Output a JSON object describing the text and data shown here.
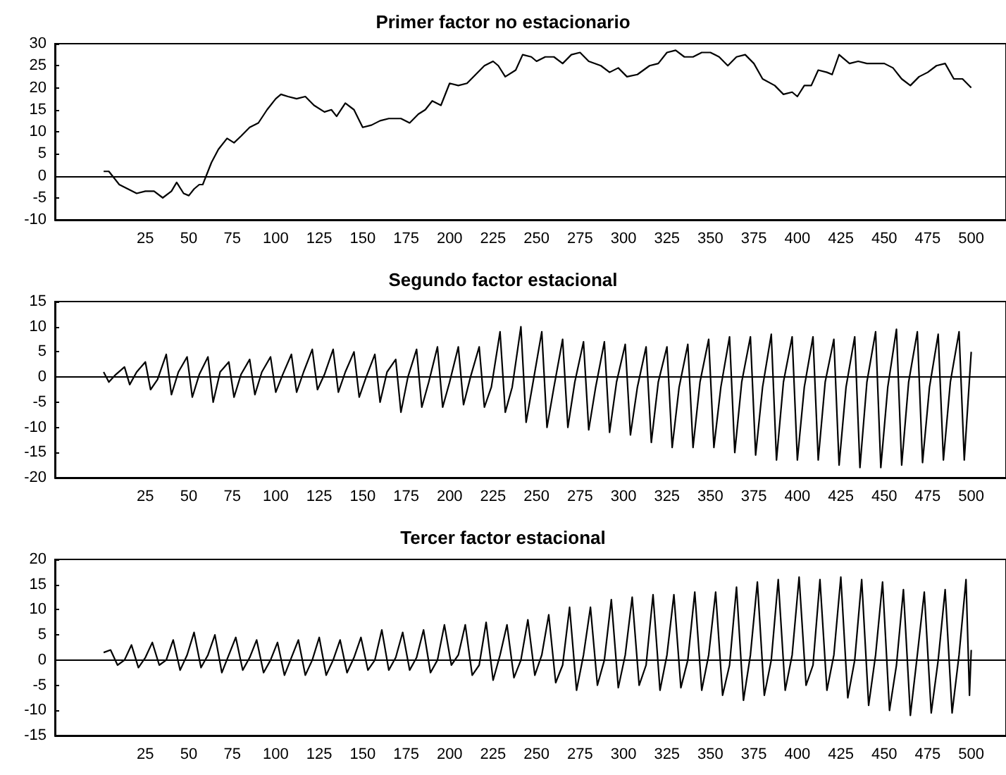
{
  "chart_data": [
    {
      "type": "line",
      "title": "Primer factor no estacionario",
      "color": "#000000",
      "marker": "none",
      "line_style": "solid",
      "x": [
        1,
        4,
        6,
        10,
        15,
        20,
        25,
        30,
        35,
        40,
        43,
        47,
        50,
        53,
        56,
        58,
        60,
        63,
        67,
        72,
        76,
        80,
        85,
        90,
        95,
        100,
        103,
        107,
        112,
        117,
        122,
        128,
        132,
        135,
        140,
        145,
        150,
        155,
        160,
        165,
        172,
        177,
        182,
        186,
        190,
        195,
        200,
        205,
        210,
        215,
        220,
        225,
        228,
        232,
        238,
        242,
        247,
        250,
        255,
        260,
        265,
        270,
        275,
        280,
        287,
        292,
        297,
        302,
        308,
        315,
        320,
        325,
        330,
        335,
        340,
        345,
        350,
        355,
        360,
        365,
        370,
        375,
        380,
        387,
        392,
        397,
        400,
        404,
        408,
        412,
        417,
        420,
        424,
        430,
        435,
        440,
        447,
        450,
        455,
        460,
        465,
        470,
        475,
        480,
        485,
        490,
        495,
        500
      ],
      "values": [
        1,
        1,
        0,
        -2,
        -3,
        -4,
        -3.5,
        -3.5,
        -5,
        -3.5,
        -1.5,
        -4,
        -4.5,
        -3,
        -2,
        -2,
        0,
        3,
        6,
        8.5,
        7.5,
        9,
        11,
        12,
        15,
        17.5,
        18.5,
        18,
        17.5,
        18,
        16,
        14.5,
        15,
        13.5,
        16.5,
        15,
        11,
        11.5,
        12.5,
        13,
        13,
        12,
        14,
        15,
        17,
        16,
        21,
        20.5,
        21,
        23,
        25,
        26,
        25,
        22.5,
        24,
        27.5,
        27,
        26,
        27,
        27,
        25.5,
        27.5,
        28,
        26,
        25,
        23.5,
        24.5,
        22.5,
        23,
        25,
        25.5,
        28,
        28.5,
        27,
        27,
        28,
        28,
        27,
        25,
        27,
        27.5,
        25.5,
        22,
        20.5,
        18.5,
        19,
        18,
        20.5,
        20.5,
        24,
        23.5,
        23,
        27.5,
        25.5,
        26,
        25.5,
        25.5,
        25.5,
        24.5,
        22,
        20.5,
        22.5,
        23.5,
        25,
        25.5,
        22,
        22,
        20
      ],
      "xlim": [
        -27,
        520
      ],
      "xticks": [
        25,
        50,
        75,
        100,
        125,
        150,
        175,
        200,
        225,
        250,
        275,
        300,
        325,
        350,
        375,
        400,
        425,
        450,
        475,
        500
      ],
      "ylim": [
        -10,
        30
      ],
      "yticks": [
        -10,
        -5,
        0,
        5,
        10,
        15,
        20,
        25,
        30
      ],
      "ref_lines": [
        {
          "axis": "y",
          "value": 0
        }
      ]
    },
    {
      "type": "line",
      "title": "Segundo factor estacional",
      "color": "#000000",
      "marker": "none",
      "line_style": "solid",
      "x": [
        1,
        4,
        8,
        13,
        16,
        20,
        25,
        28,
        32,
        37,
        40,
        44,
        49,
        52,
        56,
        61,
        64,
        68,
        73,
        76,
        80,
        85,
        88,
        92,
        97,
        100,
        104,
        109,
        112,
        116,
        121,
        124,
        128,
        133,
        136,
        140,
        145,
        148,
        152,
        157,
        160,
        164,
        169,
        172,
        176,
        181,
        184,
        188,
        193,
        196,
        200,
        205,
        208,
        212,
        217,
        220,
        224,
        229,
        232,
        236,
        241,
        244,
        248,
        253,
        256,
        260,
        265,
        268,
        272,
        277,
        280,
        284,
        289,
        292,
        296,
        301,
        304,
        308,
        313,
        316,
        320,
        325,
        328,
        332,
        337,
        340,
        344,
        349,
        352,
        356,
        361,
        364,
        368,
        373,
        376,
        380,
        385,
        388,
        392,
        397,
        400,
        404,
        409,
        412,
        416,
        421,
        424,
        428,
        433,
        436,
        440,
        445,
        448,
        452,
        457,
        460,
        464,
        469,
        472,
        476,
        481,
        484,
        488,
        493,
        496,
        500
      ],
      "values": [
        1,
        -1,
        0.5,
        2,
        -1.5,
        1,
        3,
        -2.5,
        -0.5,
        4.5,
        -3.5,
        1,
        4,
        -4,
        0.5,
        4,
        -5,
        1,
        3,
        -4,
        0.5,
        3.5,
        -3.5,
        1,
        4,
        -3,
        0.5,
        4.5,
        -3,
        1,
        5.5,
        -2.5,
        0.5,
        5.5,
        -3,
        1,
        5,
        -4,
        0,
        4.5,
        -5,
        1,
        3.5,
        -7,
        0,
        5.5,
        -6,
        -1,
        6,
        -6,
        -1,
        6,
        -5.5,
        0,
        6,
        -6,
        -2,
        9,
        -7,
        -2,
        10,
        -9,
        -1,
        9,
        -10,
        -2,
        7.5,
        -10,
        -1,
        7,
        -10.5,
        -2,
        7,
        -11,
        -1,
        6.5,
        -11.5,
        -2,
        6,
        -13,
        -1,
        6,
        -14,
        -2,
        6.5,
        -14,
        -1,
        7.5,
        -14,
        -2,
        8,
        -15,
        -1,
        8,
        -15.5,
        -2,
        8.5,
        -16.5,
        -1,
        8,
        -16.5,
        -2,
        8,
        -16.5,
        -1,
        7.5,
        -17.5,
        -2,
        8,
        -18,
        -1,
        9,
        -18,
        -2,
        9.5,
        -17.5,
        -1,
        9,
        -17,
        -2,
        8.5,
        -16.5,
        -1,
        9,
        -16.5,
        5
      ],
      "xlim": [
        -27,
        520
      ],
      "xticks": [
        25,
        50,
        75,
        100,
        125,
        150,
        175,
        200,
        225,
        250,
        275,
        300,
        325,
        350,
        375,
        400,
        425,
        450,
        475,
        500
      ],
      "ylim": [
        -20,
        15
      ],
      "yticks": [
        -20,
        -15,
        -10,
        -5,
        0,
        5,
        10,
        15
      ],
      "ref_lines": [
        {
          "axis": "y",
          "value": 0
        }
      ]
    },
    {
      "type": "line",
      "title": "Tercer factor estacional",
      "color": "#000000",
      "marker": "none",
      "line_style": "solid",
      "x": [
        1,
        5,
        9,
        13,
        17,
        21,
        25,
        29,
        33,
        37,
        41,
        45,
        49,
        53,
        57,
        61,
        65,
        69,
        73,
        77,
        81,
        85,
        89,
        93,
        97,
        101,
        105,
        109,
        113,
        117,
        121,
        125,
        129,
        133,
        137,
        141,
        145,
        149,
        153,
        157,
        161,
        165,
        169,
        173,
        177,
        181,
        185,
        189,
        193,
        197,
        201,
        205,
        209,
        213,
        217,
        221,
        225,
        229,
        233,
        237,
        241,
        245,
        249,
        253,
        257,
        261,
        265,
        269,
        273,
        277,
        281,
        285,
        289,
        293,
        297,
        301,
        305,
        309,
        313,
        317,
        321,
        325,
        329,
        333,
        337,
        341,
        345,
        349,
        353,
        357,
        361,
        365,
        369,
        373,
        377,
        381,
        385,
        389,
        393,
        397,
        401,
        405,
        409,
        413,
        417,
        421,
        425,
        429,
        433,
        437,
        441,
        445,
        449,
        453,
        457,
        461,
        465,
        469,
        473,
        477,
        481,
        485,
        489,
        493,
        497,
        499,
        500
      ],
      "values": [
        1.5,
        2,
        -1,
        0,
        3,
        -1.5,
        0.5,
        3.5,
        -1,
        0,
        4,
        -2,
        1,
        5.5,
        -1.5,
        1,
        5,
        -2.5,
        1,
        4.5,
        -2,
        0.5,
        4,
        -2.5,
        0,
        3.5,
        -3,
        0.5,
        4,
        -3,
        0,
        4.5,
        -3,
        0,
        4,
        -2.5,
        0.5,
        4.5,
        -2,
        0,
        6,
        -2,
        0.5,
        5.5,
        -2,
        0.5,
        6,
        -2.5,
        0,
        7,
        -1,
        1,
        7,
        -3,
        -1,
        7.5,
        -4,
        1,
        7,
        -3.5,
        0,
        8,
        -3,
        1,
        9,
        -4.5,
        -1,
        10.5,
        -6,
        1,
        10.5,
        -5,
        0,
        12,
        -5.5,
        1,
        12.5,
        -5,
        -1,
        13,
        -6,
        1,
        13,
        -5.5,
        0,
        13.5,
        -6,
        1,
        13.5,
        -7,
        -1,
        14.5,
        -8,
        1,
        15.5,
        -7,
        0,
        16,
        -6,
        1,
        16.5,
        -5,
        -1,
        16,
        -6,
        1,
        16.5,
        -7.5,
        0,
        16,
        -9,
        1,
        15.5,
        -10,
        -1,
        14,
        -11,
        1,
        13.5,
        -10.5,
        0,
        14,
        -10.5,
        1,
        16,
        -7,
        2
      ],
      "xlim": [
        -27,
        520
      ],
      "xticks": [
        25,
        50,
        75,
        100,
        125,
        150,
        175,
        200,
        225,
        250,
        275,
        300,
        325,
        350,
        375,
        400,
        425,
        450,
        475,
        500
      ],
      "ylim": [
        -15,
        20
      ],
      "yticks": [
        -15,
        -10,
        -5,
        0,
        5,
        10,
        15,
        20
      ],
      "ref_lines": [
        {
          "axis": "y",
          "value": 0
        }
      ]
    }
  ]
}
